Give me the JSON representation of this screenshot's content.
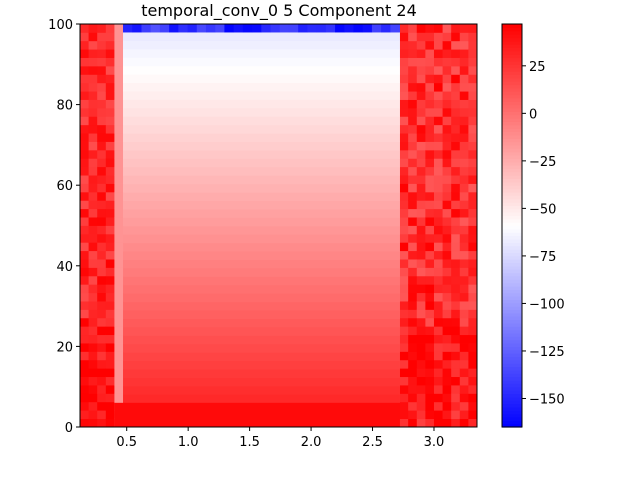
{
  "chart_data": {
    "type": "heatmap",
    "title": "temporal_conv_0 5 Component 24",
    "xlabel": "",
    "ylabel": "",
    "xlim": [
      0.12,
      3.35
    ],
    "ylim": [
      0,
      100
    ],
    "x_ticks": [
      0.5,
      1.0,
      1.5,
      2.0,
      2.5,
      3.0
    ],
    "x_tick_labels": [
      "0.5",
      "1.0",
      "1.5",
      "2.0",
      "2.5",
      "3.0"
    ],
    "y_ticks": [
      0,
      20,
      40,
      60,
      80,
      100
    ],
    "y_tick_labels": [
      "0",
      "20",
      "40",
      "60",
      "80",
      "100"
    ],
    "colormap": "bwr",
    "colorbar": {
      "range": [
        -165,
        47
      ],
      "ticks": [
        25,
        0,
        -25,
        -50,
        -75,
        -100,
        -125,
        -150
      ],
      "tick_labels": [
        "25",
        "0",
        "−25",
        "−50",
        "−75",
        "−100",
        "−125",
        "−150"
      ]
    },
    "regions": [
      {
        "name": "left-noisy-band",
        "x_range": [
          0.12,
          0.4
        ],
        "y_range": [
          0,
          100
        ],
        "value_range": [
          15,
          47
        ]
      },
      {
        "name": "edge-gradient",
        "x_range": [
          0.4,
          0.47
        ],
        "y_range": [
          0,
          100
        ],
        "value_range": [
          -20,
          0
        ]
      },
      {
        "name": "center-gradient",
        "x_range": [
          0.47,
          2.72
        ],
        "y_range": [
          6,
          98
        ],
        "value_bottom": 30,
        "value_top": -70
      },
      {
        "name": "top-blue-strip",
        "x_range": [
          0.47,
          2.72
        ],
        "y_range": [
          98,
          100
        ],
        "value_range": [
          -165,
          -130
        ]
      },
      {
        "name": "bottom-red-strip",
        "x_range": [
          0.4,
          2.72
        ],
        "y_range": [
          0,
          6
        ],
        "value_range": [
          40,
          47
        ]
      },
      {
        "name": "right-noisy-band",
        "x_range": [
          2.72,
          3.35
        ],
        "y_range": [
          0,
          100
        ],
        "value_range": [
          10,
          47
        ]
      }
    ]
  }
}
